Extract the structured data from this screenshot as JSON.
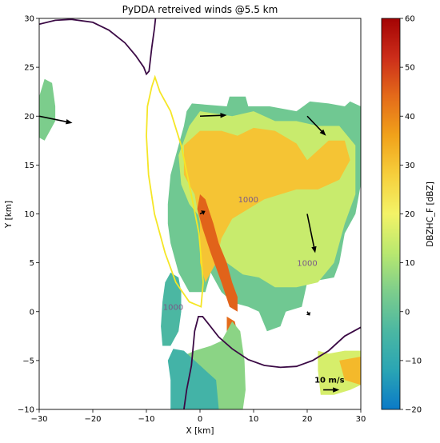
{
  "chart_data": {
    "type": "heatmap",
    "title": "PyDDA retreived winds @5.5 km",
    "xlabel": "X [km]",
    "ylabel": "Y [km]",
    "xlim": [
      -30,
      30
    ],
    "ylim": [
      -10,
      30
    ],
    "xticks": [
      -30,
      -20,
      -10,
      0,
      10,
      20,
      30
    ],
    "yticks": [
      -10,
      -5,
      0,
      5,
      10,
      15,
      20,
      25,
      30
    ],
    "xtick_labels": [
      "−30",
      "−20",
      "−10",
      "0",
      "10",
      "20",
      "30"
    ],
    "ytick_labels": [
      "−10",
      "−5",
      "0",
      "5",
      "10",
      "15",
      "20",
      "25",
      "30"
    ],
    "colorbar": {
      "label": "DBZHC_F [dBZ]",
      "range": [
        -20,
        60
      ],
      "ticks": [
        -20,
        -10,
        0,
        10,
        20,
        30,
        40,
        50,
        60
      ],
      "tick_labels": [
        "−20",
        "−10",
        "0",
        "10",
        "20",
        "30",
        "40",
        "50",
        "60"
      ],
      "colormap": [
        "#0b7ac7",
        "#2aa5b4",
        "#4bb7a2",
        "#7ccd8c",
        "#b9e86f",
        "#f3f367",
        "#f6cf3c",
        "#f1a21a",
        "#e46b1a",
        "#cc2d1a",
        "#a30303"
      ]
    },
    "reflectivity_regions": [
      {
        "name": "west-echo",
        "dbz": 4,
        "polygon": [
          [
            -30,
            22
          ],
          [
            -29,
            23.8
          ],
          [
            -27.6,
            23.4
          ],
          [
            -27,
            21
          ],
          [
            -27,
            19.5
          ],
          [
            -28,
            18.5
          ],
          [
            -29,
            17.5
          ],
          [
            -30,
            17.8
          ]
        ]
      },
      {
        "name": "main-echo-green",
        "dbz": 2,
        "polygon": [
          [
            -6,
            11
          ],
          [
            -5.5,
            14
          ],
          [
            -4.5,
            16
          ],
          [
            -3,
            19
          ],
          [
            -2.5,
            20.5
          ],
          [
            -1.5,
            21.3
          ],
          [
            5,
            21
          ],
          [
            5.5,
            22
          ],
          [
            8.5,
            22
          ],
          [
            9,
            21
          ],
          [
            13,
            21
          ],
          [
            18,
            20.5
          ],
          [
            20.5,
            21.5
          ],
          [
            24,
            21.3
          ],
          [
            27,
            21
          ],
          [
            28,
            21.5
          ],
          [
            30,
            21
          ],
          [
            30,
            13
          ],
          [
            29,
            10
          ],
          [
            27,
            8
          ],
          [
            26,
            5
          ],
          [
            25,
            3.5
          ],
          [
            20,
            3
          ],
          [
            19,
            0.5
          ],
          [
            16,
            0
          ],
          [
            15,
            -1.5
          ],
          [
            12.5,
            -2
          ],
          [
            11,
            0
          ],
          [
            9,
            0.5
          ],
          [
            7,
            0.8
          ],
          [
            6,
            1
          ],
          [
            4,
            2
          ],
          [
            2,
            4
          ],
          [
            1,
            2
          ],
          [
            -2,
            2
          ],
          [
            -4,
            4
          ],
          [
            -5.5,
            7
          ],
          [
            -6,
            9
          ]
        ]
      },
      {
        "name": "main-echo-yellow",
        "dbz": 14,
        "polygon": [
          [
            -4,
            16
          ],
          [
            -2,
            19
          ],
          [
            0,
            20.5
          ],
          [
            6,
            20
          ],
          [
            10,
            20.5
          ],
          [
            14,
            19.5
          ],
          [
            18,
            19.5
          ],
          [
            22,
            19
          ],
          [
            26,
            19
          ],
          [
            29,
            17
          ],
          [
            29,
            12
          ],
          [
            27,
            9
          ],
          [
            25,
            5
          ],
          [
            22,
            3
          ],
          [
            18,
            2.5
          ],
          [
            14,
            2.5
          ],
          [
            11,
            3.5
          ],
          [
            8,
            3.8
          ],
          [
            5,
            5
          ],
          [
            3,
            7
          ],
          [
            1,
            9
          ],
          [
            -2,
            11
          ],
          [
            -3.5,
            13
          ]
        ]
      },
      {
        "name": "main-echo-orange",
        "dbz": 30,
        "polygon": [
          [
            -3,
            17
          ],
          [
            0,
            18.5
          ],
          [
            4,
            18.5
          ],
          [
            7,
            18
          ],
          [
            10,
            18.8
          ],
          [
            14,
            18.5
          ],
          [
            18,
            17.2
          ],
          [
            20,
            15.5
          ],
          [
            22,
            16.5
          ],
          [
            24,
            17.5
          ],
          [
            27,
            17.5
          ],
          [
            28,
            15.5
          ],
          [
            26,
            13.5
          ],
          [
            22,
            12.5
          ],
          [
            18,
            12.5
          ],
          [
            15,
            12
          ],
          [
            12,
            11.5
          ],
          [
            9,
            10.5
          ],
          [
            6,
            9.5
          ],
          [
            4,
            7.5
          ],
          [
            3,
            5
          ],
          [
            1,
            3
          ],
          [
            0,
            5
          ],
          [
            0,
            9
          ],
          [
            -1,
            12
          ],
          [
            -3,
            14
          ]
        ]
      },
      {
        "name": "core-red",
        "dbz": 45,
        "polygon": [
          [
            0,
            12
          ],
          [
            1,
            11.5
          ],
          [
            2.5,
            9
          ],
          [
            3.5,
            7
          ],
          [
            5,
            5
          ],
          [
            6,
            3
          ],
          [
            7,
            1.5
          ],
          [
            7,
            0
          ],
          [
            5.5,
            0.5
          ],
          [
            4,
            3
          ],
          [
            2,
            6
          ],
          [
            0.5,
            8.5
          ],
          [
            -0.5,
            10.5
          ]
        ]
      },
      {
        "name": "lower-core-red",
        "dbz": 44,
        "polygon": [
          [
            5,
            -0.5
          ],
          [
            6.5,
            -1
          ],
          [
            7.3,
            -3
          ],
          [
            7.5,
            -6
          ],
          [
            7.3,
            -8.5
          ],
          [
            6.5,
            -9
          ],
          [
            5.8,
            -7
          ],
          [
            5.5,
            -4
          ],
          [
            5,
            -2
          ]
        ]
      },
      {
        "name": "lower-green",
        "dbz": 6,
        "polygon": [
          [
            -5.5,
            -10
          ],
          [
            -5,
            -8
          ],
          [
            -4,
            -6
          ],
          [
            -3,
            -4.5
          ],
          [
            -1,
            -4
          ],
          [
            2,
            -3.5
          ],
          [
            4,
            -3
          ],
          [
            5,
            -2
          ],
          [
            6,
            -1
          ],
          [
            7.5,
            -2
          ],
          [
            8.3,
            -5
          ],
          [
            8.5,
            -8
          ],
          [
            8,
            -10
          ]
        ]
      },
      {
        "name": "lower-teal",
        "dbz": -6,
        "polygon": [
          [
            -5.5,
            -10
          ],
          [
            -5.5,
            -7
          ],
          [
            -6,
            -5
          ],
          [
            -5,
            -3.8
          ],
          [
            -3,
            -4
          ],
          [
            -1,
            -5
          ],
          [
            1,
            -6
          ],
          [
            3,
            -7
          ],
          [
            3.5,
            -10
          ]
        ]
      },
      {
        "name": "left-teal",
        "dbz": -4,
        "polygon": [
          [
            -7,
            -3.5
          ],
          [
            -7.3,
            -1.5
          ],
          [
            -7,
            1
          ],
          [
            -6.5,
            3
          ],
          [
            -5.5,
            4
          ],
          [
            -4,
            3.5
          ],
          [
            -3.5,
            2
          ],
          [
            -3.5,
            0
          ],
          [
            -4,
            -2
          ],
          [
            -5.5,
            -3.5
          ]
        ]
      },
      {
        "name": "lower-right-echo",
        "dbz": 16,
        "polygon": [
          [
            22,
            -4
          ],
          [
            22,
            -6
          ],
          [
            22.5,
            -8.5
          ],
          [
            25,
            -8.5
          ],
          [
            28,
            -8
          ],
          [
            30,
            -7.5
          ],
          [
            30,
            -4
          ],
          [
            27,
            -4
          ],
          [
            24,
            -4.3
          ]
        ]
      },
      {
        "name": "lower-right-orange",
        "dbz": 32,
        "polygon": [
          [
            26,
            -5
          ],
          [
            27,
            -7
          ],
          [
            30,
            -7.5
          ],
          [
            30,
            -4.6
          ]
        ]
      }
    ],
    "contour_levels": [
      {
        "label": "1000",
        "label_positions": [
          [
            9,
            11.5
          ],
          [
            20,
            5
          ],
          [
            -5,
            0.5
          ]
        ]
      }
    ],
    "contour_lines": [
      {
        "name": "dark-contour-upper",
        "color": "#3b0a45",
        "points": [
          [
            -30,
            29.4
          ],
          [
            -27,
            29.8
          ],
          [
            -24,
            29.9
          ],
          [
            -20,
            29.6
          ],
          [
            -17,
            28.8
          ],
          [
            -14,
            27.5
          ],
          [
            -12,
            26.2
          ],
          [
            -10.5,
            25
          ],
          [
            -10,
            24.3
          ],
          [
            -9.5,
            24.6
          ],
          [
            -9,
            27
          ],
          [
            -8.5,
            29
          ],
          [
            -8.3,
            30
          ]
        ]
      },
      {
        "name": "dark-contour-lower",
        "color": "#3b0a45",
        "points": [
          [
            -3,
            -10
          ],
          [
            -2.5,
            -8
          ],
          [
            -1.6,
            -5.5
          ],
          [
            -1,
            -2
          ],
          [
            -0.3,
            -0.5
          ],
          [
            0.5,
            -0.5
          ],
          [
            1.5,
            -1.2
          ],
          [
            3.5,
            -2.6
          ],
          [
            6,
            -3.8
          ],
          [
            9,
            -4.9
          ],
          [
            12,
            -5.5
          ],
          [
            15,
            -5.7
          ],
          [
            18,
            -5.6
          ],
          [
            21,
            -5
          ],
          [
            24,
            -4
          ],
          [
            27,
            -2.5
          ],
          [
            30,
            -1.6
          ]
        ]
      },
      {
        "name": "yellow-contour",
        "color": "#f5e626",
        "points": [
          [
            -9,
            23
          ],
          [
            -9.8,
            21
          ],
          [
            -10,
            18
          ],
          [
            -9.6,
            14
          ],
          [
            -8.5,
            10
          ],
          [
            -6.5,
            6
          ],
          [
            -4.5,
            3
          ],
          [
            -2,
            1
          ],
          [
            0.2,
            0.5
          ],
          [
            0.6,
            3
          ],
          [
            -0.2,
            8
          ],
          [
            -2,
            13
          ],
          [
            -3.5,
            17
          ],
          [
            -5.5,
            20.5
          ],
          [
            -7.5,
            22.5
          ],
          [
            -8.4,
            24
          ],
          [
            -9,
            23
          ]
        ]
      }
    ],
    "wind_arrows": [
      {
        "x": -30,
        "y": 20,
        "dx": 6.2,
        "dy": -0.7
      },
      {
        "x": 0,
        "y": 20,
        "dx": 5,
        "dy": 0.1
      },
      {
        "x": 20,
        "y": 20,
        "dx": 3.5,
        "dy": -2
      },
      {
        "x": 0,
        "y": 10,
        "dx": 1,
        "dy": 0.3
      },
      {
        "x": 20,
        "y": 10,
        "dx": 1.5,
        "dy": -4
      },
      {
        "x": 20,
        "y": 0,
        "dx": 0.5,
        "dy": -0.4
      }
    ],
    "reference_arrow": {
      "label": "10 m/s",
      "x": 23,
      "y": -8,
      "dx": 3,
      "dy": 0
    }
  }
}
